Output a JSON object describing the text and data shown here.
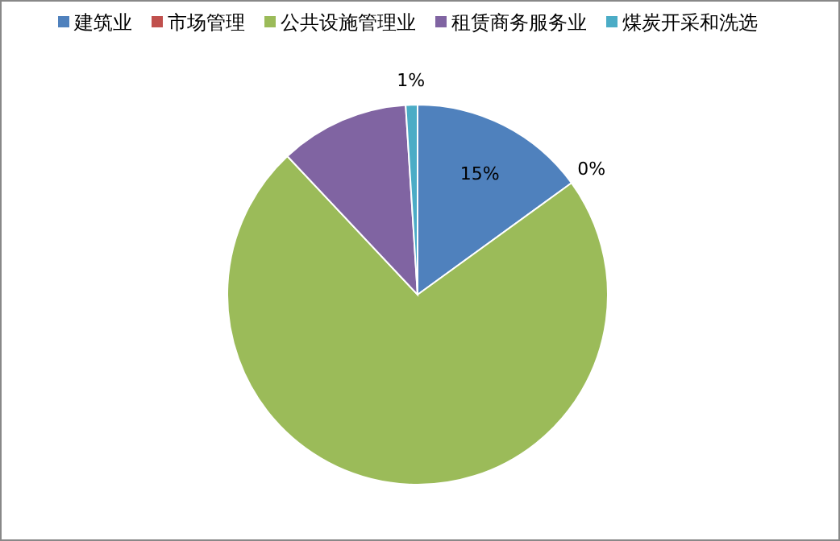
{
  "chart_data": {
    "type": "pie",
    "categories": [
      "建筑业",
      "市场管理",
      "公共设施管理业",
      "租赁商务服务业",
      "煤炭开采和洗选"
    ],
    "values": [
      15,
      0,
      73,
      11,
      1
    ],
    "colors": [
      "#4f81bd",
      "#c0504d",
      "#9bbb59",
      "#8064a2",
      "#4bacc6"
    ],
    "value_labels": [
      "15%",
      "0%",
      null,
      null,
      "1%"
    ],
    "legend": "top"
  }
}
